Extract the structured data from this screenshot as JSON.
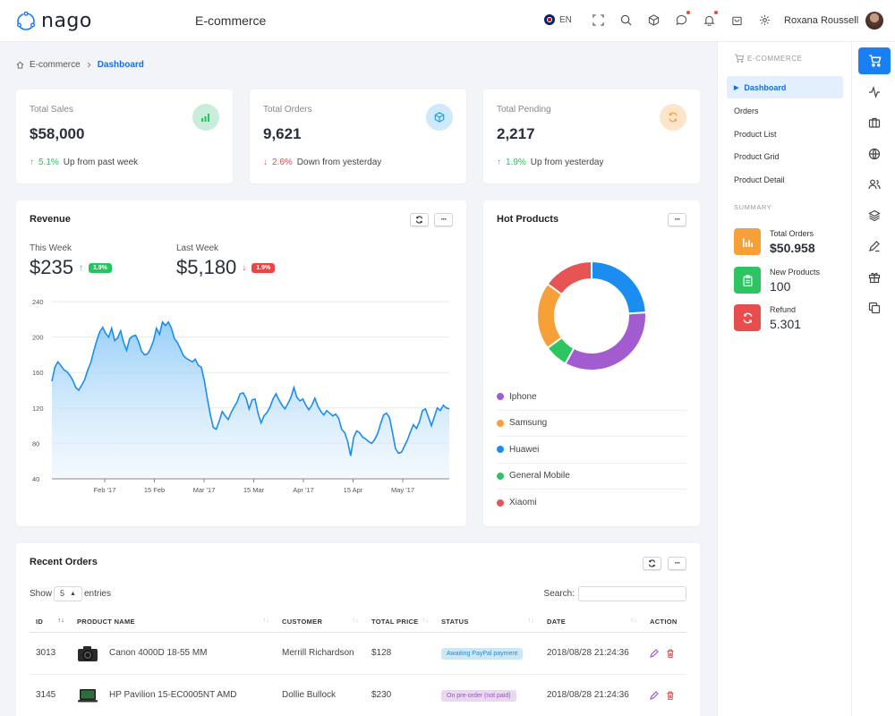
{
  "app": {
    "name": "nago",
    "page_heading": "E-commerce",
    "language": "EN",
    "user_name": "Roxana Roussell"
  },
  "breadcrumb": [
    "E-commerce",
    "Dashboard"
  ],
  "stats": [
    {
      "label": "Total Sales",
      "value": "$58,000",
      "change": "5.1%",
      "change_text": "Up from past week",
      "direction": "up",
      "icon": "bar-chart-icon",
      "icon_bg": "#c8eedb",
      "icon_color": "#22c55e"
    },
    {
      "label": "Total Orders",
      "value": "9,621",
      "change": "2.6%",
      "change_text": "Down from yesterday",
      "direction": "down",
      "icon": "box-icon",
      "icon_bg": "#cde9fa",
      "icon_color": "#1e9be0"
    },
    {
      "label": "Total Pending",
      "value": "2,217",
      "change": "1.9%",
      "change_text": "Up from yesterday",
      "direction": "up",
      "icon": "refresh-icon",
      "icon_bg": "#fde5cc",
      "icon_color": "#f59e3b"
    }
  ],
  "revenue": {
    "title": "Revenue",
    "this_week_label": "This Week",
    "this_week_value": "$235",
    "this_week_change": "1.9%",
    "last_week_label": "Last Week",
    "last_week_value": "$5,180",
    "last_week_change": "1.9%",
    "chart_data": {
      "type": "area",
      "title": "",
      "xlabel": "",
      "ylabel": "",
      "ylim": [
        40,
        240
      ],
      "yticks": [
        240,
        200,
        160,
        120,
        80,
        40
      ],
      "xticks": [
        "Feb '17",
        "15 Feb",
        "Mar '17",
        "15 Mar",
        "Apr '17",
        "15 Apr",
        "May '17"
      ],
      "grid": true,
      "values": [
        150,
        166,
        172,
        168,
        163,
        161,
        157,
        151,
        143,
        140,
        146,
        152,
        163,
        171,
        184,
        196,
        206,
        211,
        204,
        200,
        210,
        196,
        199,
        207,
        194,
        185,
        198,
        201,
        202,
        195,
        184,
        180,
        181,
        187,
        196,
        210,
        203,
        217,
        213,
        217,
        210,
        198,
        194,
        187,
        179,
        176,
        174,
        172,
        175,
        168,
        166,
        151,
        131,
        113,
        98,
        96,
        105,
        116,
        111,
        107,
        115,
        121,
        127,
        136,
        137,
        131,
        119,
        129,
        130,
        114,
        103,
        111,
        115,
        121,
        130,
        136,
        129,
        123,
        119,
        125,
        132,
        143,
        132,
        128,
        130,
        123,
        118,
        123,
        131,
        122,
        116,
        112,
        117,
        114,
        111,
        113,
        108,
        96,
        92,
        82,
        66,
        87,
        94,
        92,
        87,
        85,
        82,
        80,
        84,
        91,
        102,
        112,
        114,
        109,
        92,
        74,
        69,
        70,
        77,
        84,
        93,
        101,
        97,
        104,
        117,
        119,
        110,
        100,
        110,
        120,
        117,
        123,
        120,
        119
      ]
    }
  },
  "hot_products": {
    "title": "Hot Products",
    "chart_data": {
      "type": "pie",
      "title": "",
      "categories": [
        "Iphone",
        "Samsung",
        "Huawei",
        "General Mobile",
        "Xiaomi"
      ],
      "values": [
        34,
        20,
        24,
        7,
        15
      ],
      "colors": [
        "#a35ccf",
        "#f7a038",
        "#1c8df0",
        "#2ec461",
        "#e85353"
      ],
      "legend_position": "bottom"
    }
  },
  "recent_orders": {
    "title": "Recent Orders",
    "show_label": "Show",
    "entries_count": "5",
    "entries_label": "entries",
    "search_label": "Search:",
    "columns": [
      "ID",
      "PRODUCT NAME",
      "CUSTOMER",
      "TOTAL PRICE",
      "STATUS",
      "DATE",
      "ACTION"
    ],
    "rows": [
      {
        "id": "3013",
        "product": "Canon 4000D 18-55 MM",
        "product_icon": "camera-icon",
        "customer": "Merrill Richardson",
        "price": "$128",
        "status": "Awaiting PayPal payment",
        "status_color": "blue",
        "date": "2018/08/28 21:24:36"
      },
      {
        "id": "3145",
        "product": "HP Pavilion 15-EC0005NT AMD",
        "product_icon": "laptop-icon",
        "customer": "Dollie Bullock",
        "price": "$230",
        "status": "On pre-order (not paid)",
        "status_color": "purple",
        "date": "2018/08/28 21:24:36"
      }
    ]
  },
  "sidebar": {
    "section_label": "E-COMMERCE",
    "items": [
      "Dashboard",
      "Orders",
      "Product List",
      "Product Grid",
      "Product Detail"
    ],
    "summary_label": "SUMMARY",
    "summary": [
      {
        "label": "Total Orders",
        "value": "$50.958",
        "icon": "bar-chart-icon",
        "color": "#f7a038"
      },
      {
        "label": "New Products",
        "value": "100",
        "icon": "clipboard-icon",
        "color": "#2ec461"
      },
      {
        "label": "Refund",
        "value": "5.301",
        "icon": "refresh-icon",
        "color": "#e84d4d"
      }
    ]
  },
  "rail_icons": [
    "cart-icon",
    "activity-icon",
    "briefcase-icon",
    "globe-icon",
    "users-icon",
    "layers-icon",
    "pen-icon",
    "gift-icon",
    "copy-icon"
  ]
}
